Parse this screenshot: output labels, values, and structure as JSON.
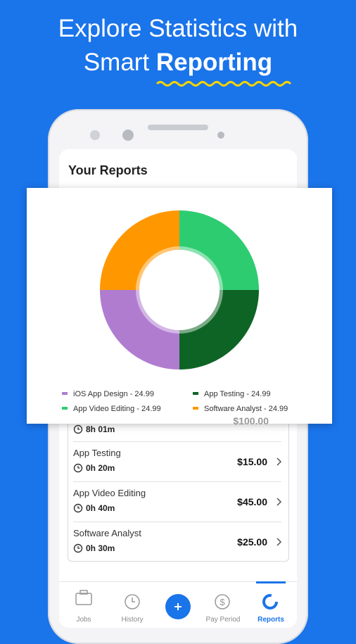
{
  "header": {
    "line1": "Explore Statistics with",
    "line2": "Smart",
    "line2_bold": "Reporting"
  },
  "screen_title": "Your Reports",
  "chart_data": {
    "type": "pie",
    "categories": [
      "App Video Editing",
      "App Testing",
      "iOS App Design",
      "Software Analyst"
    ],
    "values": [
      24.99,
      24.99,
      24.99,
      24.99
    ],
    "value_labels": [
      "App Video Editing - 24.99",
      "App Testing - 24.99",
      "iOS App Design - 24.99",
      "Software Analyst - 24.99"
    ],
    "colors": [
      "#2ecc71",
      "#0e6425",
      "#b07cd0",
      "#ff9800"
    ]
  },
  "partial_row": {
    "time": "8h 01m",
    "amount": "$100.00"
  },
  "rows": [
    {
      "name": "App Testing",
      "time": "0h 20m",
      "amount": "$15.00"
    },
    {
      "name": "App Video Editing",
      "time": "0h 40m",
      "amount": "$45.00"
    },
    {
      "name": "Software Analyst",
      "time": "0h 30m",
      "amount": "$25.00"
    }
  ],
  "nav": [
    "Jobs",
    "History",
    "Pay Period",
    "Reports"
  ]
}
